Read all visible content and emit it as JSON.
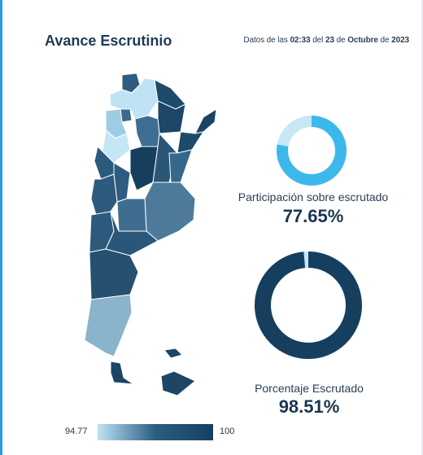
{
  "header": {
    "title": "Avance Escrutinio",
    "datetime_prefix": "Datos de las",
    "time": "02:33",
    "datetime_mid": "del",
    "day": "23",
    "datetime_de": "de",
    "month": "Octubre",
    "datetime_de2": "de",
    "year": "2023"
  },
  "participacion": {
    "label": "Participación sobre escrutado",
    "value": "77.65%",
    "fraction": 0.7765,
    "color": "#3db8ec",
    "track_color": "#c6e8f6"
  },
  "escrutado": {
    "label": "Porcentaje Escrutado",
    "value": "98.51%",
    "fraction": 0.9851,
    "color": "#163f5f",
    "track_color": "#c6e8f6"
  },
  "legend": {
    "min": "94.77",
    "max": "100"
  },
  "colors": {
    "accent": "#2a9fd8",
    "dark": "#163f5f",
    "mid": "#2f5f84",
    "light": "#b9e0f1"
  }
}
